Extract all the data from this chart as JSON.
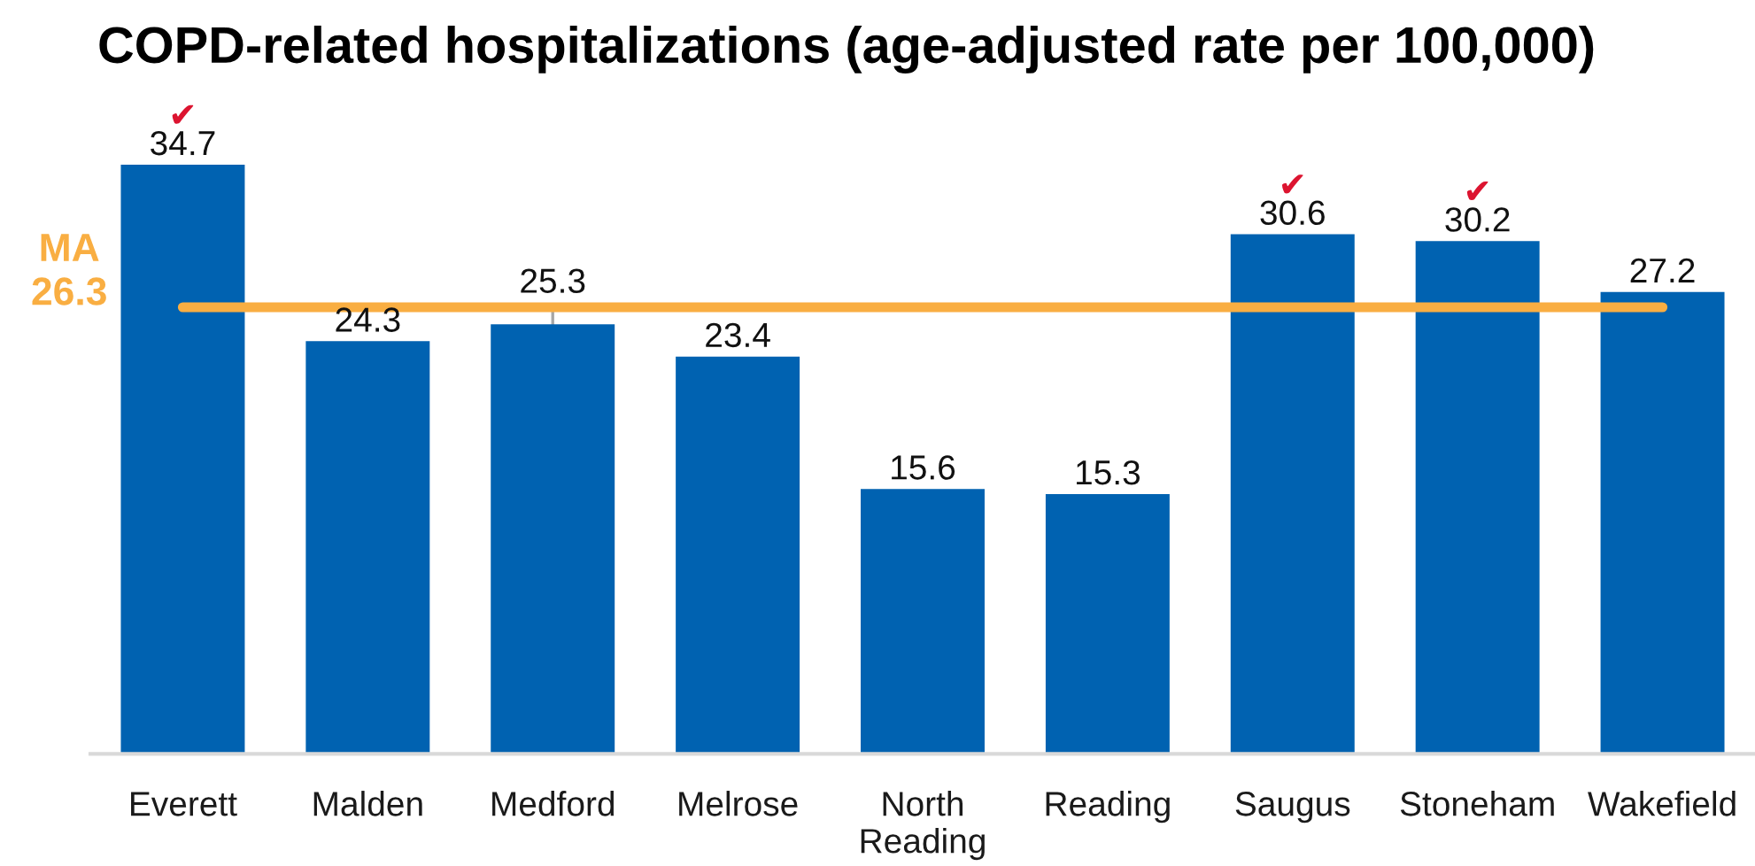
{
  "chart_data": {
    "type": "bar",
    "title": "COPD-related hospitalizations (age-adjusted rate per 100,000)",
    "categories": [
      "Everett",
      "Malden",
      "Medford",
      "Melrose",
      "North Reading",
      "Reading",
      "Saugus",
      "Stoneham",
      "Wakefield"
    ],
    "values": [
      34.7,
      24.3,
      25.3,
      23.4,
      15.6,
      15.3,
      30.6,
      30.2,
      27.2
    ],
    "color": "#0062b1",
    "data_labels": true,
    "ref_lines": [
      {
        "axis": "y",
        "value": 26.3,
        "label": "MA\n26.3",
        "color": "#f9ae42"
      }
    ],
    "annotations": [
      {
        "text": "✔",
        "x": "Everett",
        "y": 34.7
      },
      {
        "text": "✔",
        "x": "Saugus",
        "y": 30.6
      },
      {
        "text": "✔",
        "x": "Stoneham",
        "y": 30.2
      }
    ]
  }
}
